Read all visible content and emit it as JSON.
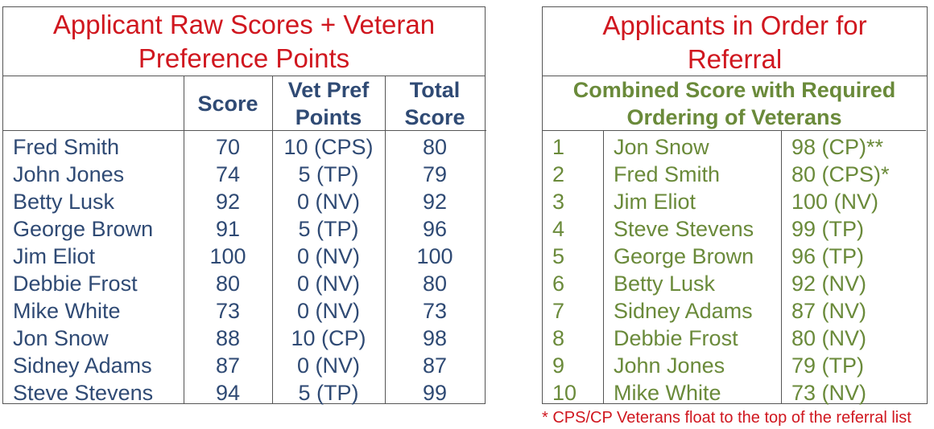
{
  "left": {
    "title": "Applicant Raw Scores + Veteran Preference Points",
    "headers": {
      "score": "Score",
      "vet_pref": "Vet Pref Points",
      "total": "Total Score"
    },
    "rows": [
      {
        "name": "Fred Smith",
        "score": "70",
        "vet": "10 (CPS)",
        "total": "80"
      },
      {
        "name": "John Jones",
        "score": "74",
        "vet": "5 (TP)",
        "total": "79"
      },
      {
        "name": "Betty Lusk",
        "score": "92",
        "vet": "0 (NV)",
        "total": "92"
      },
      {
        "name": "George Brown",
        "score": "91",
        "vet": "5 (TP)",
        "total": "96"
      },
      {
        "name": "Jim Eliot",
        "score": "100",
        "vet": "0 (NV)",
        "total": "100"
      },
      {
        "name": "Debbie Frost",
        "score": "80",
        "vet": "0 (NV)",
        "total": "80"
      },
      {
        "name": "Mike White",
        "score": "73",
        "vet": "0 (NV)",
        "total": "73"
      },
      {
        "name": "Jon Snow",
        "score": "88",
        "vet": "10 (CP)",
        "total": "98"
      },
      {
        "name": "Sidney Adams",
        "score": "87",
        "vet": "0 (NV)",
        "total": "87"
      },
      {
        "name": "Steve Stevens",
        "score": "94",
        "vet": "5 (TP)",
        "total": "99"
      }
    ]
  },
  "right": {
    "title": "Applicants in Order for Referral",
    "header": "Combined Score with Required Ordering of Veterans",
    "rows": [
      {
        "rank": "1",
        "name": "Jon Snow",
        "score": "98 (CP)**"
      },
      {
        "rank": "2",
        "name": "Fred Smith",
        "score": "80 (CPS)*"
      },
      {
        "rank": "3",
        "name": "Jim Eliot",
        "score": "100 (NV)"
      },
      {
        "rank": "4",
        "name": "Steve Stevens",
        "score": "99 (TP)"
      },
      {
        "rank": "5",
        "name": "George Brown",
        "score": "96 (TP)"
      },
      {
        "rank": "6",
        "name": "Betty Lusk",
        "score": "92 (NV)"
      },
      {
        "rank": "7",
        "name": "Sidney Adams",
        "score": "87 (NV)"
      },
      {
        "rank": "8",
        "name": "Debbie Frost",
        "score": "80 (NV)"
      },
      {
        "rank": "9",
        "name": "John Jones",
        "score": "79 (TP)"
      },
      {
        "rank": "10",
        "name": "Mike White",
        "score": "73 (NV)"
      }
    ]
  },
  "footnote": "* CPS/CP Veterans float to the top of the referral list",
  "colors": {
    "title_red": "#d0171f",
    "left_text_blue": "#2f4a74",
    "right_text_green": "#6a8a3a"
  }
}
